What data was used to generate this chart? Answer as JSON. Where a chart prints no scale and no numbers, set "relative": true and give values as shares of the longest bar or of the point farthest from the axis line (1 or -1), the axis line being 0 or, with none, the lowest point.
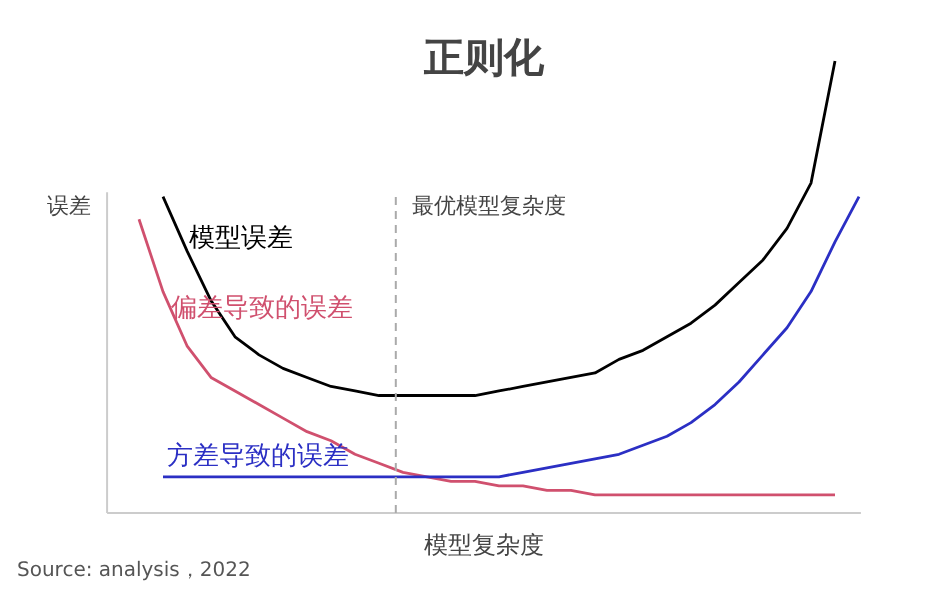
{
  "chart_data": {
    "type": "line",
    "title": "正则化",
    "xlabel": "模型复杂度",
    "ylabel": "误差",
    "relative": true,
    "grid": false,
    "legend": false,
    "categories": [
      null,
      null,
      null,
      null,
      null,
      null,
      null,
      null,
      null,
      null,
      null,
      null,
      null,
      null,
      null,
      null,
      null,
      null,
      null,
      null,
      null,
      null,
      null,
      null,
      null,
      null,
      null,
      null,
      null,
      null,
      null
    ],
    "series": [
      {
        "name": "模型误差",
        "color": "#000000",
        "values": [
          null,
          0.7,
          0.58,
          0.47,
          0.39,
          0.35,
          0.32,
          0.3,
          0.28,
          0.27,
          0.26,
          0.26,
          0.26,
          0.26,
          0.26,
          0.27,
          0.28,
          0.29,
          0.3,
          0.31,
          0.34,
          0.36,
          0.39,
          0.42,
          0.46,
          0.51,
          0.56,
          0.63,
          0.73,
          1.0,
          null
        ]
      },
      {
        "name": "偏差导致的误差",
        "color": "#d0506e",
        "values": [
          0.65,
          0.49,
          0.37,
          0.3,
          0.27,
          0.24,
          0.21,
          0.18,
          0.16,
          0.13,
          0.11,
          0.09,
          0.08,
          0.07,
          0.07,
          0.06,
          0.06,
          0.05,
          0.05,
          0.04,
          0.04,
          0.04,
          0.04,
          0.04,
          0.04,
          0.04,
          0.04,
          0.04,
          0.04,
          0.04,
          null
        ]
      },
      {
        "name": "方差导致的误差",
        "color": "#2b2fc4",
        "values": [
          null,
          0.08,
          0.08,
          0.08,
          0.08,
          0.08,
          0.08,
          0.08,
          0.08,
          0.08,
          0.08,
          0.08,
          0.08,
          0.08,
          0.08,
          0.08,
          0.09,
          0.1,
          0.11,
          0.12,
          0.13,
          0.15,
          0.17,
          0.2,
          0.24,
          0.29,
          0.35,
          0.41,
          0.49,
          0.6,
          0.7
        ]
      }
    ],
    "annotations": [
      "最优模型复杂度",
      "Source: analysis，2022"
    ]
  }
}
